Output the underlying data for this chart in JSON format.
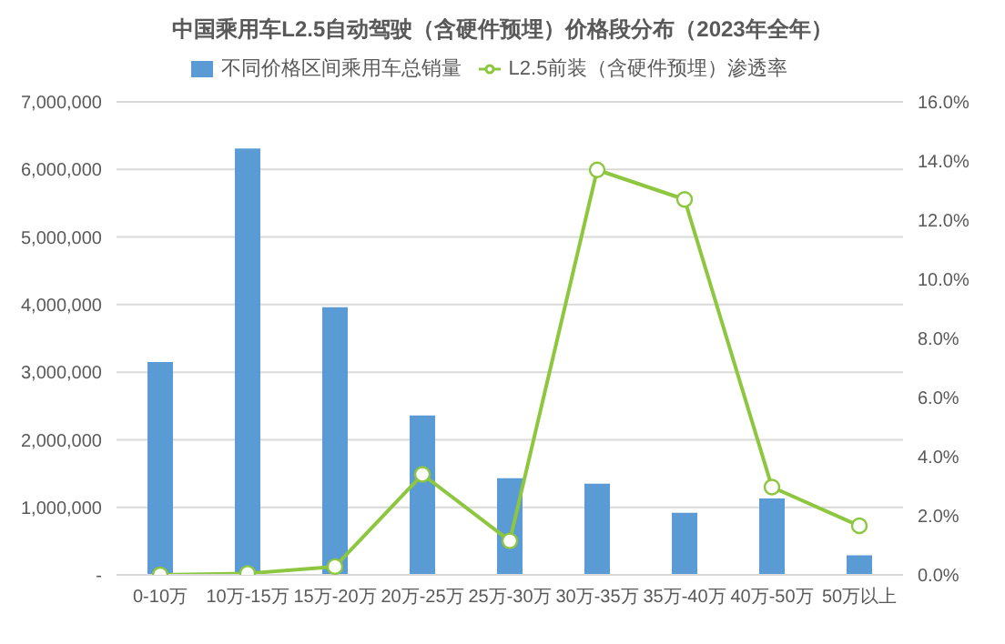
{
  "chart_data": {
    "type": "bar",
    "title": "中国乘用车L2.5自动驾驶（含硬件预埋）价格段分布（2023年全年）",
    "categories": [
      "0-10万",
      "10万-15万",
      "15万-20万",
      "20万-25万",
      "25万-30万",
      "30万-35万",
      "35万-40万",
      "40万-50万",
      "50万以上"
    ],
    "series": [
      {
        "name": "不同价格区间乘用车总销量",
        "color": "#5b9bd5",
        "values": [
          3150000,
          6310000,
          3960000,
          2360000,
          1430000,
          1350000,
          920000,
          1130000,
          290000
        ]
      },
      {
        "name": "L2.5前装（含硬件预埋）渗透率",
        "type": "line",
        "axis": "y2",
        "color": "#8dc63f",
        "marker": "circle",
        "values": [
          0.0,
          0.05,
          0.28,
          3.4,
          1.15,
          13.7,
          12.7,
          2.97,
          1.66
        ]
      }
    ],
    "ylim": [
      0,
      7000000
    ],
    "yticks": [
      {
        "value": 0,
        "label": "-"
      },
      {
        "value": 1000000,
        "label": "1,000,000"
      },
      {
        "value": 2000000,
        "label": "2,000,000"
      },
      {
        "value": 3000000,
        "label": "3,000,000"
      },
      {
        "value": 4000000,
        "label": "4,000,000"
      },
      {
        "value": 5000000,
        "label": "5,000,000"
      },
      {
        "value": 6000000,
        "label": "6,000,000"
      },
      {
        "value": 7000000,
        "label": "7,000,000"
      }
    ],
    "y2lim": [
      0,
      16
    ],
    "y2ticks": [
      {
        "value": 0,
        "label": "0.0%"
      },
      {
        "value": 2,
        "label": "2.0%"
      },
      {
        "value": 4,
        "label": "4.0%"
      },
      {
        "value": 6,
        "label": "6.0%"
      },
      {
        "value": 8,
        "label": "8.0%"
      },
      {
        "value": 10,
        "label": "10.0%"
      },
      {
        "value": 12,
        "label": "12.0%"
      },
      {
        "value": 14,
        "label": "14.0%"
      },
      {
        "value": 16,
        "label": "16.0%"
      }
    ],
    "grid": "y",
    "legend": "top"
  }
}
